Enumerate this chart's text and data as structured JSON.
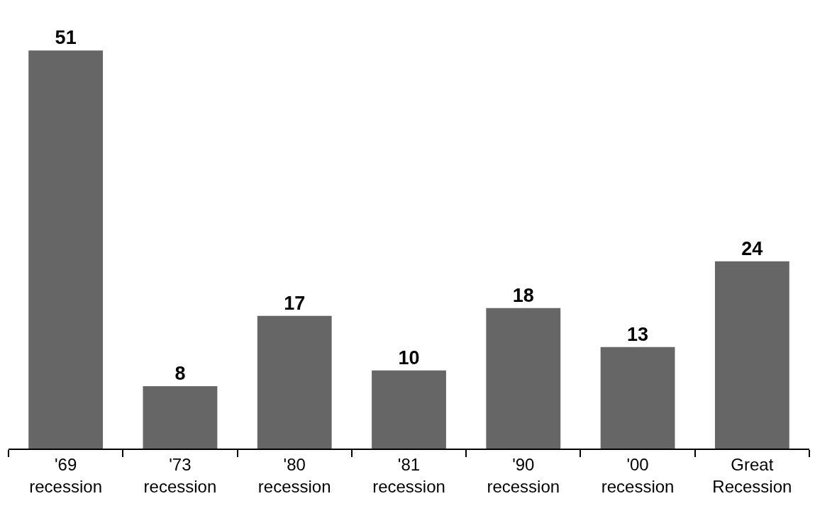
{
  "chart_data": {
    "type": "bar",
    "categories": [
      "'69\nrecession",
      "'73\nrecession",
      "'80\nrecession",
      "'81\nrecession",
      "'90\nrecession",
      "'00\nrecession",
      "Great\nRecession"
    ],
    "values": [
      51,
      8,
      17,
      10,
      18,
      13,
      24
    ],
    "color": "#666666",
    "data_labels": true
  }
}
